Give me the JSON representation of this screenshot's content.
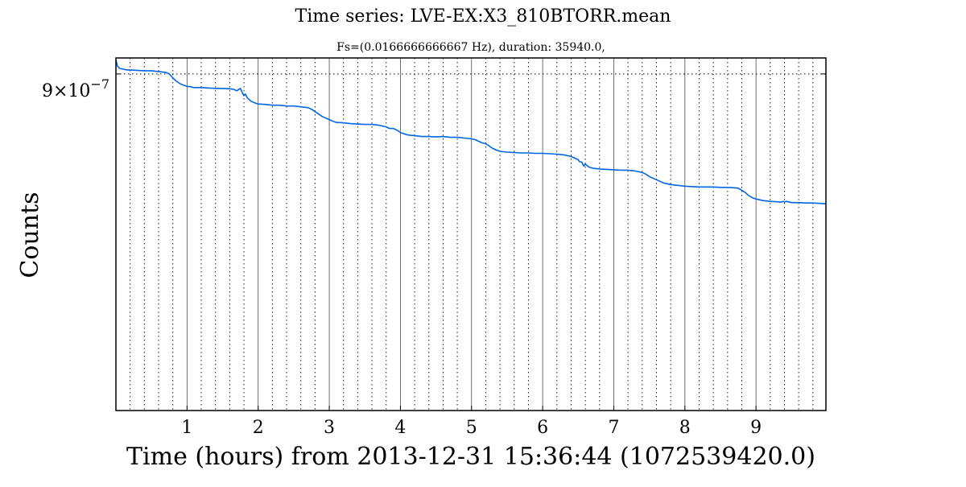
{
  "chart_data": {
    "type": "line",
    "title": "Time series: LVE-EX:X3_810BTORR.mean",
    "subtitle": "Fs=(0.0166666666667 Hz), duration: 35940.0,",
    "xlabel": "Time (hours) from 2013-12-31 15:36:44 (1072539420.0)",
    "ylabel": "Counts",
    "xlim": [
      0,
      9.983
    ],
    "ylim": [
      4.8e-07,
      9.2e-07
    ],
    "x_ticks": [
      1,
      2,
      3,
      4,
      5,
      6,
      7,
      8,
      9
    ],
    "x_tick_labels": [
      "1",
      "2",
      "3",
      "4",
      "5",
      "6",
      "7",
      "8",
      "9"
    ],
    "y_tick_value": 9e-07,
    "y_tick_label": {
      "mantissa": "9×10",
      "exponent": "−7"
    },
    "grid": true,
    "line_color": "#0066e6",
    "series": [
      {
        "x": [
          0,
          0.02,
          0.05,
          0.1,
          0.15,
          0.2,
          0.3,
          0.4,
          0.5,
          0.6,
          0.7,
          0.75,
          0.8,
          0.85,
          0.9,
          0.95,
          1.0,
          1.05,
          1.1,
          1.2,
          1.3,
          1.4,
          1.5,
          1.6,
          1.65,
          1.7,
          1.75,
          1.78,
          1.8,
          1.82,
          1.85,
          1.9,
          1.95,
          2.0,
          2.1,
          2.2,
          2.3,
          2.4,
          2.5,
          2.6,
          2.7,
          2.75,
          2.8,
          2.85,
          2.9,
          2.95,
          3.0,
          3.05,
          3.1,
          3.2,
          3.3,
          3.4,
          3.5,
          3.6,
          3.65,
          3.7,
          3.75,
          3.8,
          3.85,
          3.9,
          3.95,
          4.0,
          4.05,
          4.1,
          4.2,
          4.3,
          4.4,
          4.5,
          4.6,
          4.7,
          4.8,
          4.9,
          5.0,
          5.05,
          5.1,
          5.15,
          5.2,
          5.25,
          5.3,
          5.35,
          5.4,
          5.5,
          5.6,
          5.7,
          5.8,
          5.9,
          6.0,
          6.1,
          6.2,
          6.3,
          6.35,
          6.4,
          6.45,
          6.5,
          6.52,
          6.55,
          6.58,
          6.6,
          6.62,
          6.65,
          6.7,
          6.8,
          6.9,
          7.0,
          7.1,
          7.2,
          7.3,
          7.35,
          7.4,
          7.45,
          7.5,
          7.55,
          7.6,
          7.65,
          7.7,
          7.8,
          7.9,
          8.0,
          8.1,
          8.2,
          8.3,
          8.4,
          8.5,
          8.6,
          8.7,
          8.75,
          8.8,
          8.85,
          8.9,
          8.95,
          9.0,
          9.05,
          9.1,
          9.2,
          9.3,
          9.35,
          9.38,
          9.4,
          9.42,
          9.45,
          9.5,
          9.6,
          9.7,
          9.8,
          9.9,
          9.983
        ],
        "y": [
          9.18e-07,
          9.1e-07,
          9.07e-07,
          9.06e-07,
          9.05e-07,
          9.05e-07,
          9.045e-07,
          9.04e-07,
          9.04e-07,
          9.03e-07,
          9.02e-07,
          9e-07,
          8.95e-07,
          8.91e-07,
          8.88e-07,
          8.86e-07,
          8.845e-07,
          8.84e-07,
          8.83e-07,
          8.83e-07,
          8.825e-07,
          8.82e-07,
          8.82e-07,
          8.815e-07,
          8.81e-07,
          8.79e-07,
          8.82e-07,
          8.76e-07,
          8.73e-07,
          8.75e-07,
          8.7e-07,
          8.66e-07,
          8.64e-07,
          8.625e-07,
          8.62e-07,
          8.61e-07,
          8.61e-07,
          8.6e-07,
          8.6e-07,
          8.59e-07,
          8.58e-07,
          8.56e-07,
          8.53e-07,
          8.5e-07,
          8.47e-07,
          8.45e-07,
          8.43e-07,
          8.41e-07,
          8.395e-07,
          8.39e-07,
          8.38e-07,
          8.375e-07,
          8.37e-07,
          8.37e-07,
          8.365e-07,
          8.36e-07,
          8.35e-07,
          8.34e-07,
          8.32e-07,
          8.32e-07,
          8.3e-07,
          8.27e-07,
          8.255e-07,
          8.24e-07,
          8.23e-07,
          8.22e-07,
          8.22e-07,
          8.215e-07,
          8.22e-07,
          8.21e-07,
          8.21e-07,
          8.2e-07,
          8.19e-07,
          8.18e-07,
          8.16e-07,
          8.14e-07,
          8.13e-07,
          8.1e-07,
          8.07e-07,
          8.05e-07,
          8.035e-07,
          8.025e-07,
          8.02e-07,
          8.015e-07,
          8.015e-07,
          8.01e-07,
          8.01e-07,
          8.005e-07,
          8e-07,
          7.99e-07,
          7.98e-07,
          7.97e-07,
          7.95e-07,
          7.93e-07,
          7.905e-07,
          7.9e-07,
          7.85e-07,
          7.875e-07,
          7.86e-07,
          7.84e-07,
          7.825e-07,
          7.815e-07,
          7.81e-07,
          7.805e-07,
          7.8e-07,
          7.8e-07,
          7.79e-07,
          7.78e-07,
          7.77e-07,
          7.75e-07,
          7.72e-07,
          7.7e-07,
          7.68e-07,
          7.66e-07,
          7.64e-07,
          7.62e-07,
          7.61e-07,
          7.6e-07,
          7.595e-07,
          7.59e-07,
          7.59e-07,
          7.59e-07,
          7.585e-07,
          7.585e-07,
          7.58e-07,
          7.575e-07,
          7.55e-07,
          7.52e-07,
          7.48e-07,
          7.455e-07,
          7.44e-07,
          7.43e-07,
          7.42e-07,
          7.41e-07,
          7.405e-07,
          7.4e-07,
          7.41e-07,
          7.4e-07,
          7.41e-07,
          7.405e-07,
          7.395e-07,
          7.395e-07,
          7.39e-07,
          7.39e-07,
          7.385e-07,
          7.38e-07
        ]
      }
    ]
  }
}
